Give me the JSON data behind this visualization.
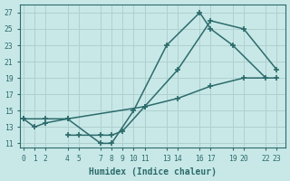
{
  "xlabel": "Humidex (Indice chaleur)",
  "bg_color": "#c8e8e8",
  "grid_color": "#b0d0d0",
  "line_color": "#2d6b6b",
  "xlim": [
    -0.3,
    23.8
  ],
  "ylim": [
    10.5,
    28.0
  ],
  "xtick_positions": [
    0,
    1,
    2,
    4,
    5,
    7,
    8,
    9,
    10,
    11,
    13,
    14,
    16,
    17,
    19,
    20,
    22,
    23
  ],
  "xtick_labels": [
    "0",
    "1",
    "2",
    "4",
    "5",
    "7",
    "8",
    "9",
    "10",
    "11",
    "13",
    "14",
    "16",
    "17",
    "19",
    "20",
    "22",
    "23"
  ],
  "ytick_positions": [
    11,
    13,
    15,
    17,
    19,
    21,
    23,
    25,
    27
  ],
  "line1_x": [
    0,
    1,
    2,
    4,
    7,
    8,
    10,
    13,
    16,
    17,
    19,
    22
  ],
  "line1_y": [
    14,
    13,
    13.5,
    14,
    11,
    11,
    15,
    23,
    27,
    25,
    23,
    19
  ],
  "line2_x": [
    4,
    5,
    7,
    8,
    9,
    11,
    14,
    17,
    20,
    23
  ],
  "line2_y": [
    12,
    12,
    12,
    12,
    12.5,
    15.5,
    20,
    26,
    25,
    20
  ],
  "line3_x": [
    0,
    2,
    4,
    11,
    14,
    17,
    20,
    23
  ],
  "line3_y": [
    14,
    14,
    14,
    15.5,
    16.5,
    18,
    19,
    19
  ]
}
